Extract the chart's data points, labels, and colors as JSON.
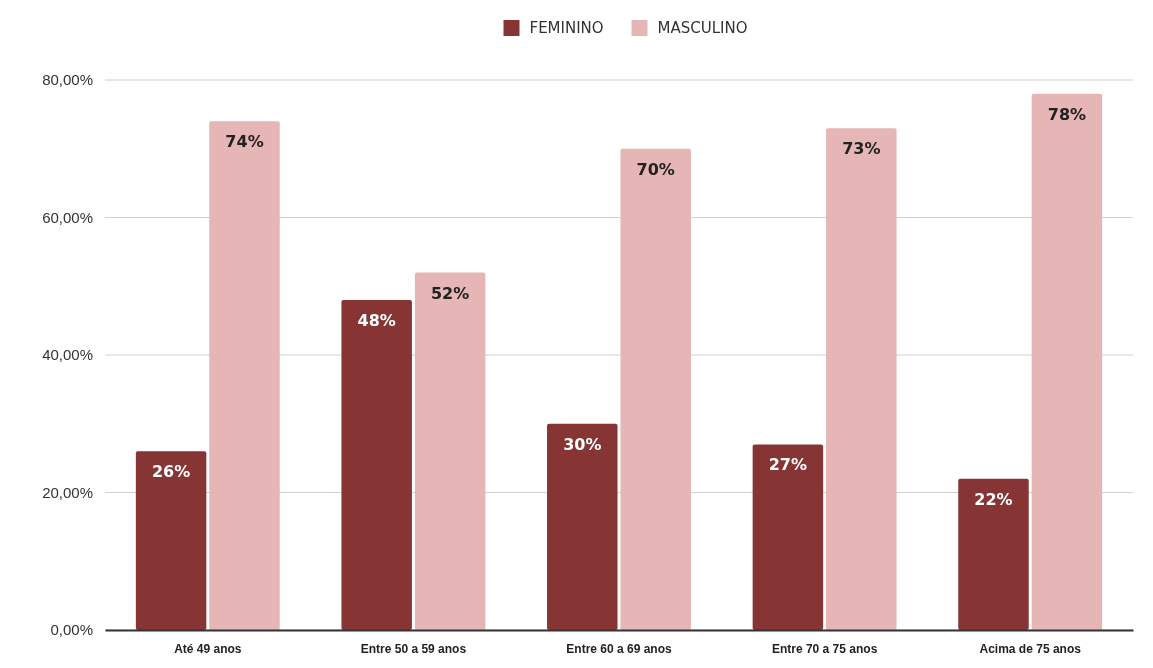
{
  "chart_data": {
    "type": "bar",
    "categories": [
      "Até 49 anos",
      "Entre 50 a 59 anos",
      "Entre 60 a 69 anos",
      "Entre 70 a 75 anos",
      "Acima de 75 anos"
    ],
    "series": [
      {
        "name": "FEMININO",
        "color": "#873434",
        "values": [
          26,
          48,
          30,
          27,
          22
        ],
        "value_labels": [
          "26%",
          "48%",
          "30%",
          "27%",
          "22%"
        ]
      },
      {
        "name": "MASCULINO",
        "color": "#e6b5b5",
        "values": [
          74,
          52,
          70,
          73,
          78
        ],
        "value_labels": [
          "74%",
          "52%",
          "70%",
          "73%",
          "78%"
        ]
      }
    ],
    "ylim": [
      0,
      80
    ],
    "yticks": [
      {
        "value": 0,
        "label": "0,00%"
      },
      {
        "value": 20,
        "label": "20,00%"
      },
      {
        "value": 40,
        "label": "40,00%"
      },
      {
        "value": 60,
        "label": "60,00%"
      },
      {
        "value": 80,
        "label": "80,00%"
      }
    ],
    "grid": "y",
    "legend": "top"
  }
}
